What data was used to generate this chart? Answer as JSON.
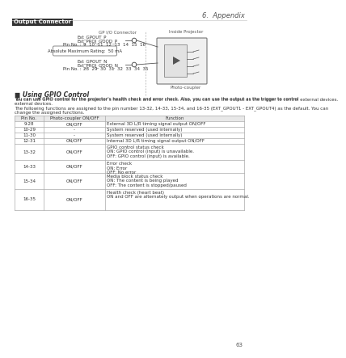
{
  "page_title": "6.  Appendix",
  "section_title": "Output Connector",
  "gp_io_label": "GP I/O Connector",
  "inside_proj_label": "Inside Projector",
  "signal_p1": "Ext_GPOUT_P",
  "signal_p2": "Ext_PROJ_GOOD_P",
  "pin_label_p": "Pin No. :",
  "pins_p": "9  10  11  12  13  14  15  16",
  "abs_max": "Absolute Maximum Rating:  50 mA",
  "signal_n1": "Ext_GPOUT_N",
  "signal_n2": "Ext_PROJ_GOOD_N",
  "pin_label_n": "Pin No. :",
  "pins_n": "28  29  30  31  32  33  34  35",
  "photo_coupler_label": "Photo-coupler",
  "using_gpio_title": "■ Using GPIO Control",
  "body_text1": "You can use GPIO control for the projector’s health check and error check. Also, you can use the output as the trigger to control external devices.",
  "body_text2": "The following functions are assigned to the pin number 13-32, 14-33, 15-34, and 16-35 (EXT_GPOUT1 - EXT_GPOUT4) as the default.  You can change the assigned functions.",
  "table_headers": [
    "Pin No.",
    "Photo-coupler ON/OFF",
    "Function"
  ],
  "table_rows": [
    [
      "9-28",
      "ON/OFF",
      "External 3D L/R timing signal output ON/OFF"
    ],
    [
      "10-29",
      "-",
      "System reserved (used internally)"
    ],
    [
      "11-30",
      "-",
      "System reserved (used internally)"
    ],
    [
      "12-31",
      "ON/OFF",
      "Internal 3D L/R timing signal output ON/OFF"
    ],
    [
      "13-32",
      "ON/OFF",
      "GPIO control status check\nON: GPIO control (input) is unavailable.\nOFF: GPIO control (input) is available."
    ],
    [
      "14-33",
      "ON/OFF",
      "Error check\nON: Error\nOFF: No error"
    ],
    [
      "15-34",
      "ON/OFF",
      "Media block status check\nON: The content is being played\nOFF: The content is stopped/paused"
    ],
    [
      "16-35",
      "ON/OFF",
      "Health check (heart beat)\nON and OFF are alternately output when operations are normal."
    ]
  ],
  "page_number": "63",
  "bg_color": "#ffffff",
  "text_color": "#333333",
  "table_border": "#aaaaaa",
  "section_title_bg": "#333333",
  "section_title_color": "#ffffff",
  "divider_color": "#999999",
  "diagram_text_color": "#555555"
}
